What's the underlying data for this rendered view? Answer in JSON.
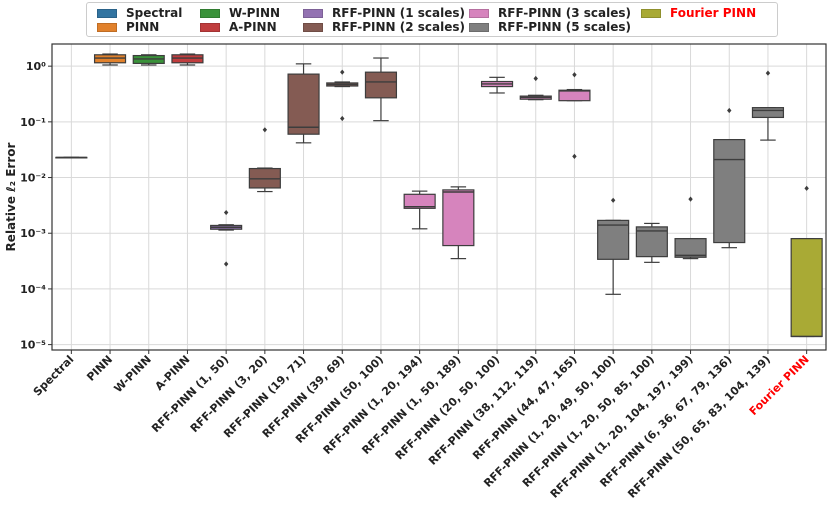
{
  "chart_data": {
    "type": "box",
    "title": "",
    "xlabel": "",
    "ylabel": "Relative ℓ₂ Error",
    "yscale": "log",
    "ylim": [
      8e-06,
      2.5
    ],
    "yticks": [
      {
        "value": 1,
        "label": "10⁰"
      },
      {
        "value": 0.1,
        "label": "10⁻¹"
      },
      {
        "value": 0.01,
        "label": "10⁻²"
      },
      {
        "value": 0.001,
        "label": "10⁻³"
      },
      {
        "value": 0.0001,
        "label": "10⁻⁴"
      },
      {
        "value": 1e-05,
        "label": "10⁻⁵"
      }
    ],
    "grid": true,
    "legend": {
      "placement": "top-center",
      "entries": [
        {
          "name": "Spectral",
          "color": "#3274a1"
        },
        {
          "name": "PINN",
          "color": "#e1812c"
        },
        {
          "name": "W-PINN",
          "color": "#3a923a"
        },
        {
          "name": "A-PINN",
          "color": "#c03d3e"
        },
        {
          "name": "RFF-PINN (1 scales)",
          "color": "#9372b2"
        },
        {
          "name": "RFF-PINN (2 scales)",
          "color": "#845b53"
        },
        {
          "name": "RFF-PINN (3 scales)",
          "color": "#d684bd"
        },
        {
          "name": "RFF-PINN (5 scales)",
          "color": "#7f7f7f"
        },
        {
          "name": "Fourier PINN",
          "color": "#a9aa35",
          "highlight": "#ff0000"
        }
      ]
    },
    "categories": [
      {
        "label": "Spectral",
        "color": "#3274a1",
        "q1": 0.023,
        "median": 0.023,
        "q3": 0.023,
        "whislo": 0.023,
        "whishi": 0.023,
        "fliers": []
      },
      {
        "label": "PINN",
        "color": "#e1812c",
        "q1": 1.15,
        "median": 1.4,
        "q3": 1.6,
        "whislo": 1.05,
        "whishi": 1.65,
        "fliers": []
      },
      {
        "label": "W-PINN",
        "color": "#3a923a",
        "q1": 1.12,
        "median": 1.35,
        "q3": 1.55,
        "whislo": 1.05,
        "whishi": 1.6,
        "fliers": []
      },
      {
        "label": "A-PINN",
        "color": "#c03d3e",
        "q1": 1.15,
        "median": 1.4,
        "q3": 1.6,
        "whislo": 1.05,
        "whishi": 1.65,
        "fliers": []
      },
      {
        "label": "RFF-PINN (1, 50)",
        "color": "#9372b2",
        "q1": 0.00118,
        "median": 0.00128,
        "q3": 0.00138,
        "whislo": 0.00114,
        "whishi": 0.00142,
        "fliers": [
          0.00235,
          0.00028
        ]
      },
      {
        "label": "RFF-PINN (3, 20)",
        "color": "#845b53",
        "q1": 0.0065,
        "median": 0.0095,
        "q3": 0.0145,
        "whislo": 0.0056,
        "whishi": 0.0148,
        "fliers": [
          0.072
        ]
      },
      {
        "label": "RFF-PINN (19, 71)",
        "color": "#845b53",
        "q1": 0.06,
        "median": 0.08,
        "q3": 0.72,
        "whislo": 0.042,
        "whishi": 1.1,
        "fliers": []
      },
      {
        "label": "RFF-PINN (39, 69)",
        "color": "#845b53",
        "q1": 0.44,
        "median": 0.47,
        "q3": 0.5,
        "whislo": 0.43,
        "whishi": 0.52,
        "fliers": [
          0.78,
          0.115
        ]
      },
      {
        "label": "RFF-PINN (50, 100)",
        "color": "#845b53",
        "q1": 0.27,
        "median": 0.52,
        "q3": 0.78,
        "whislo": 0.105,
        "whishi": 1.4,
        "fliers": []
      },
      {
        "label": "RFF-PINN (1, 20, 194)",
        "color": "#d684bd",
        "q1": 0.0028,
        "median": 0.003,
        "q3": 0.005,
        "whislo": 0.0012,
        "whishi": 0.0057,
        "fliers": []
      },
      {
        "label": "RFF-PINN (1, 50, 189)",
        "color": "#d684bd",
        "q1": 0.0006,
        "median": 0.0055,
        "q3": 0.006,
        "whislo": 0.00035,
        "whishi": 0.0068,
        "fliers": []
      },
      {
        "label": "RFF-PINN (20, 50, 100)",
        "color": "#d684bd",
        "q1": 0.43,
        "median": 0.48,
        "q3": 0.53,
        "whislo": 0.33,
        "whishi": 0.63,
        "fliers": []
      },
      {
        "label": "RFF-PINN (38, 112, 119)",
        "color": "#d684bd",
        "q1": 0.255,
        "median": 0.275,
        "q3": 0.29,
        "whislo": 0.25,
        "whishi": 0.3,
        "fliers": [
          0.6
        ]
      },
      {
        "label": "RFF-PINN (44, 47, 165)",
        "color": "#d684bd",
        "q1": 0.24,
        "median": 0.36,
        "q3": 0.37,
        "whislo": 0.24,
        "whishi": 0.38,
        "fliers": [
          0.7,
          0.024
        ]
      },
      {
        "label": "RFF-PINN (1, 20, 49, 50, 100)",
        "color": "#7f7f7f",
        "q1": 0.00034,
        "median": 0.0014,
        "q3": 0.0017,
        "whislo": 8e-05,
        "whishi": 0.0017,
        "fliers": [
          0.0039
        ]
      },
      {
        "label": "RFF-PINN (1, 20, 50, 85, 100)",
        "color": "#7f7f7f",
        "q1": 0.00038,
        "median": 0.0011,
        "q3": 0.0013,
        "whislo": 0.0003,
        "whishi": 0.0015,
        "fliers": []
      },
      {
        "label": "RFF-PINN (1, 20, 104, 197, 199)",
        "color": "#7f7f7f",
        "q1": 0.00037,
        "median": 0.0004,
        "q3": 0.0008,
        "whislo": 0.00035,
        "whishi": 0.0008,
        "fliers": [
          0.0041
        ]
      },
      {
        "label": "RFF-PINN (6, 36, 67, 79, 136)",
        "color": "#7f7f7f",
        "q1": 0.00068,
        "median": 0.021,
        "q3": 0.048,
        "whislo": 0.00055,
        "whishi": 0.048,
        "fliers": [
          0.16
        ]
      },
      {
        "label": "RFF-PINN (50, 65, 83, 104, 139)",
        "color": "#7f7f7f",
        "q1": 0.12,
        "median": 0.16,
        "q3": 0.18,
        "whislo": 0.047,
        "whishi": 0.18,
        "fliers": [
          0.75
        ]
      },
      {
        "label": "Fourier PINN",
        "color": "#a9aa35",
        "q1": 1.4e-05,
        "median": 1.4e-05,
        "q3": 0.0008,
        "whislo": 1.4e-05,
        "whishi": 0.0008,
        "fliers": [
          0.0064
        ],
        "highlight": "#ff0000"
      }
    ]
  }
}
